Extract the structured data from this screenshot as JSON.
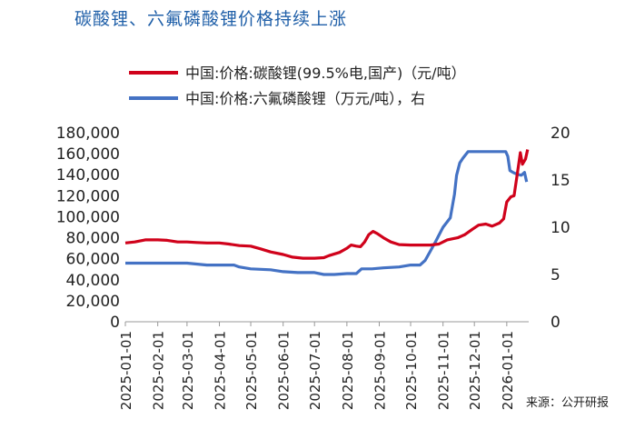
{
  "title": "碳酸锂、六氟磷酸锂价格持续上涨",
  "source": "来源：公开研报",
  "chart_data": {
    "type": "line",
    "title": "碳酸锂、六氟磷酸锂价格持续上涨",
    "legend_position": "top",
    "grid": false,
    "x_tick_labels": [
      "2025-01-01",
      "2025-02-01",
      "2025-03-01",
      "2025-04-01",
      "2025-05-01",
      "2025-06-01",
      "2025-07-01",
      "2025-08-01",
      "2025-09-01",
      "2025-10-01",
      "2025-11-01",
      "2025-12-01",
      "2026-01-01"
    ],
    "xlim": [
      "2025-01-01",
      "2026-01-22"
    ],
    "y_left": {
      "lim": [
        0,
        180000
      ],
      "ticks": [
        "0",
        "20,000",
        "40,000",
        "60,000",
        "80,000",
        "100,000",
        "120,000",
        "140,000",
        "160,000",
        "180,000"
      ]
    },
    "y_right": {
      "lim": [
        0,
        20
      ],
      "ticks": [
        "0",
        "5",
        "10",
        "15",
        "20"
      ]
    },
    "series": [
      {
        "name": "中国:价格:碳酸锂(99.5%电,国产)（元/吨）",
        "axis": "left",
        "color": "#d0021b",
        "points": [
          [
            "2025-01-01",
            75000
          ],
          [
            "2025-01-10",
            76000
          ],
          [
            "2025-01-20",
            78000
          ],
          [
            "2025-02-01",
            78000
          ],
          [
            "2025-02-10",
            77500
          ],
          [
            "2025-02-20",
            76000
          ],
          [
            "2025-03-01",
            76000
          ],
          [
            "2025-03-10",
            75500
          ],
          [
            "2025-03-20",
            75000
          ],
          [
            "2025-04-01",
            75000
          ],
          [
            "2025-04-10",
            74000
          ],
          [
            "2025-04-20",
            72500
          ],
          [
            "2025-05-01",
            72000
          ],
          [
            "2025-05-10",
            69500
          ],
          [
            "2025-05-20",
            66500
          ],
          [
            "2025-06-01",
            64000
          ],
          [
            "2025-06-10",
            61500
          ],
          [
            "2025-06-20",
            60500
          ],
          [
            "2025-07-01",
            60500
          ],
          [
            "2025-07-10",
            61000
          ],
          [
            "2025-07-15",
            63000
          ],
          [
            "2025-07-25",
            66000
          ],
          [
            "2025-08-01",
            70000
          ],
          [
            "2025-08-05",
            73000
          ],
          [
            "2025-08-10",
            72000
          ],
          [
            "2025-08-14",
            71500
          ],
          [
            "2025-08-18",
            76000
          ],
          [
            "2025-08-22",
            83000
          ],
          [
            "2025-08-26",
            86000
          ],
          [
            "2025-08-30",
            84000
          ],
          [
            "2025-09-05",
            80000
          ],
          [
            "2025-09-12",
            76000
          ],
          [
            "2025-09-20",
            73500
          ],
          [
            "2025-10-01",
            73000
          ],
          [
            "2025-10-10",
            73000
          ],
          [
            "2025-10-20",
            73000
          ],
          [
            "2025-10-28",
            74000
          ],
          [
            "2025-11-05",
            78000
          ],
          [
            "2025-11-15",
            80000
          ],
          [
            "2025-11-22",
            83000
          ],
          [
            "2025-11-29",
            88000
          ],
          [
            "2025-12-05",
            92000
          ],
          [
            "2025-12-12",
            93000
          ],
          [
            "2025-12-18",
            91000
          ],
          [
            "2025-12-25",
            94000
          ],
          [
            "2025-12-29",
            98000
          ],
          [
            "2026-01-01",
            114000
          ],
          [
            "2026-01-05",
            119000
          ],
          [
            "2026-01-08",
            120000
          ],
          [
            "2026-01-11",
            140000
          ],
          [
            "2026-01-14",
            161000
          ],
          [
            "2026-01-16",
            150000
          ],
          [
            "2026-01-19",
            155000
          ],
          [
            "2026-01-21",
            164000
          ]
        ]
      },
      {
        "name": "中国:价格:六氟磷酸锂（万元/吨），右",
        "axis": "right",
        "color": "#4472c4",
        "points": [
          [
            "2025-01-01",
            6.2
          ],
          [
            "2025-02-01",
            6.2
          ],
          [
            "2025-03-01",
            6.2
          ],
          [
            "2025-03-20",
            6.0
          ],
          [
            "2025-04-01",
            6.0
          ],
          [
            "2025-04-15",
            6.0
          ],
          [
            "2025-04-20",
            5.8
          ],
          [
            "2025-05-01",
            5.6
          ],
          [
            "2025-05-20",
            5.5
          ],
          [
            "2025-06-01",
            5.3
          ],
          [
            "2025-06-15",
            5.2
          ],
          [
            "2025-07-01",
            5.2
          ],
          [
            "2025-07-10",
            5.0
          ],
          [
            "2025-07-20",
            5.0
          ],
          [
            "2025-08-01",
            5.1
          ],
          [
            "2025-08-10",
            5.1
          ],
          [
            "2025-08-15",
            5.6
          ],
          [
            "2025-08-25",
            5.6
          ],
          [
            "2025-09-05",
            5.7
          ],
          [
            "2025-09-20",
            5.8
          ],
          [
            "2025-10-01",
            6.0
          ],
          [
            "2025-10-10",
            6.0
          ],
          [
            "2025-10-15",
            6.5
          ],
          [
            "2025-10-20",
            7.5
          ],
          [
            "2025-10-25",
            8.5
          ],
          [
            "2025-11-01",
            10.0
          ],
          [
            "2025-11-08",
            11.0
          ],
          [
            "2025-11-12",
            13.5
          ],
          [
            "2025-11-14",
            15.5
          ],
          [
            "2025-11-17",
            16.8
          ],
          [
            "2025-11-20",
            17.3
          ],
          [
            "2025-11-25",
            18.0
          ],
          [
            "2025-12-01",
            18.0
          ],
          [
            "2025-12-10",
            18.0
          ],
          [
            "2025-12-20",
            18.0
          ],
          [
            "2025-12-31",
            18.0
          ],
          [
            "2026-01-02",
            17.5
          ],
          [
            "2026-01-04",
            16.0
          ],
          [
            "2026-01-07",
            15.8
          ],
          [
            "2026-01-11",
            15.6
          ],
          [
            "2026-01-15",
            15.5
          ],
          [
            "2026-01-18",
            15.8
          ],
          [
            "2026-01-20",
            14.8
          ]
        ]
      }
    ]
  }
}
